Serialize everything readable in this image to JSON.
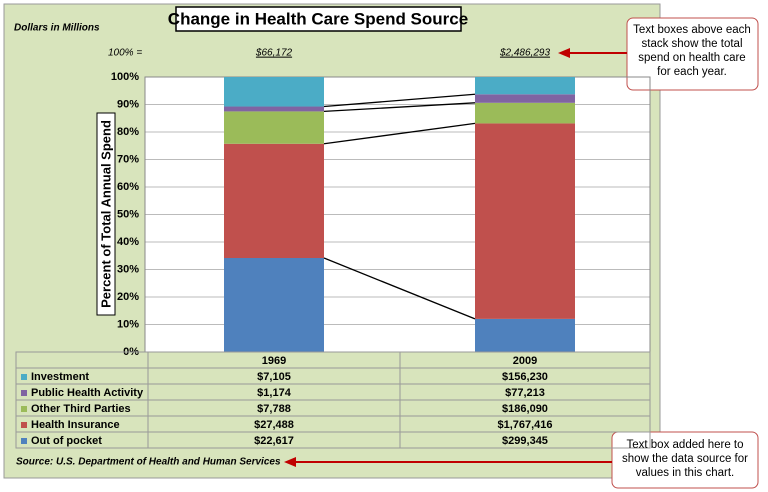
{
  "chart_data": {
    "type": "stacked_percent_bar",
    "title": "Change in Health Care Spend Source",
    "units_note": "Dollars in Millions",
    "totals_label": "100% =",
    "y_label": "Percent of Total Annual Spend",
    "categories": [
      "1969",
      "2009"
    ],
    "totals": [
      66172,
      2486293
    ],
    "totals_labels": [
      "$66,172",
      "$2,486,293"
    ],
    "series": [
      {
        "name": "Investment",
        "color": "#4bacc6",
        "values": [
          7105,
          156230
        ],
        "value_labels": [
          "$7,105",
          "$156,230"
        ]
      },
      {
        "name": "Public Health Activity",
        "color": "#8064a2",
        "values": [
          1174,
          77213
        ],
        "value_labels": [
          "$1,174",
          "$77,213"
        ]
      },
      {
        "name": "Other Third Parties",
        "color": "#9bbb59",
        "values": [
          7788,
          186090
        ],
        "value_labels": [
          "$7,788",
          "$186,090"
        ]
      },
      {
        "name": "Health Insurance",
        "color": "#c0504d",
        "values": [
          27488,
          1767416
        ],
        "value_labels": [
          "$27,488",
          "$1,767,416"
        ]
      },
      {
        "name": "Out of pocket",
        "color": "#4f81bd",
        "values": [
          22617,
          299345
        ],
        "value_labels": [
          "$22,617",
          "$299,345"
        ]
      }
    ],
    "ylim": [
      0,
      100
    ],
    "yticks": [
      {
        "value": 0,
        "label": "0%"
      },
      {
        "value": 10,
        "label": "10%"
      },
      {
        "value": 20,
        "label": "20%"
      },
      {
        "value": 30,
        "label": "30%"
      },
      {
        "value": 40,
        "label": "40%"
      },
      {
        "value": 50,
        "label": "50%"
      },
      {
        "value": 60,
        "label": "60%"
      },
      {
        "value": 70,
        "label": "70%"
      },
      {
        "value": 80,
        "label": "80%"
      },
      {
        "value": 90,
        "label": "90%"
      },
      {
        "value": 100,
        "label": "100%"
      }
    ],
    "grid": true,
    "source": "Source: U.S. Department of Health and Human Services",
    "callouts": [
      {
        "lines": [
          "Text boxes above each",
          "stack show the total",
          "spend on health care",
          "for each year."
        ]
      },
      {
        "lines": [
          "Text box added here to",
          "show the data source for",
          "values in this chart."
        ]
      }
    ]
  }
}
